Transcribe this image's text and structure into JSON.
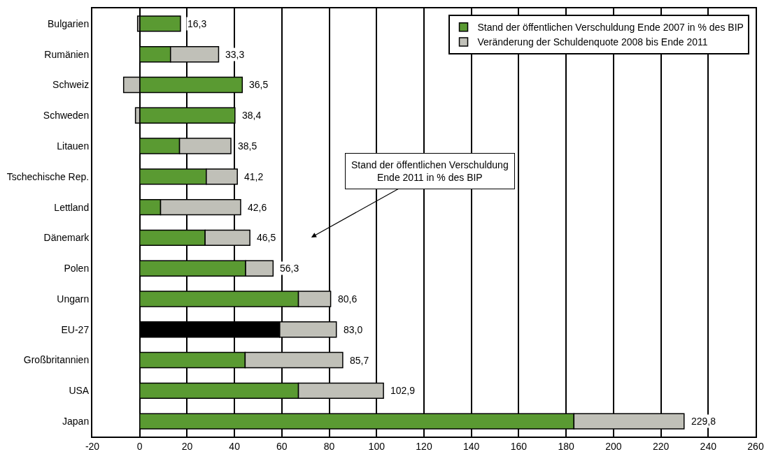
{
  "chart_data": {
    "type": "bar",
    "orientation": "horizontal",
    "stacked": true,
    "categories": [
      "Bulgarien",
      "Rumänien",
      "Schweiz",
      "Schweden",
      "Litauen",
      "Tschechische Rep.",
      "Lettland",
      "Dänemark",
      "Polen",
      "Ungarn",
      "EU-27",
      "Großbritannien",
      "USA",
      "Japan"
    ],
    "series": [
      {
        "name": "Stand der öffentlichen Verschuldung Ende 2007 in % des BIP",
        "color": "#5a9a32",
        "colors": [
          "#5a9a32",
          "#5a9a32",
          "#5a9a32",
          "#5a9a32",
          "#5a9a32",
          "#5a9a32",
          "#5a9a32",
          "#5a9a32",
          "#5a9a32",
          "#5a9a32",
          "#000000",
          "#5a9a32",
          "#5a9a32",
          "#5a9a32"
        ],
        "values": [
          17.2,
          13.0,
          43.3,
          40.2,
          16.8,
          28.1,
          8.8,
          27.6,
          44.7,
          67.0,
          59.1,
          44.5,
          67.0,
          183.3
        ]
      },
      {
        "name": "Veränderung der Schuldenquote 2008 bis Ende 2011",
        "color": "#c0c0b8",
        "values": [
          -0.9,
          20.3,
          -6.8,
          -1.8,
          21.7,
          13.1,
          33.8,
          18.9,
          11.6,
          13.6,
          23.9,
          41.2,
          35.9,
          46.5
        ]
      }
    ],
    "totals": [
      "16,3",
      "33,3",
      "36,5",
      "38,4",
      "38,5",
      "41,2",
      "42,6",
      "46,5",
      "56,3",
      "80,6",
      "83,0",
      "85,7",
      "102,9",
      "229,8"
    ],
    "xlim": [
      -20,
      260
    ],
    "xticks": [
      -20,
      0,
      20,
      40,
      60,
      80,
      100,
      120,
      140,
      160,
      180,
      200,
      220,
      240,
      260
    ],
    "grid": "x",
    "legend": "top right",
    "annotations": [
      "Stand der öffentlichen Verschuldung\nEnde 2011 in % des BIP"
    ]
  }
}
